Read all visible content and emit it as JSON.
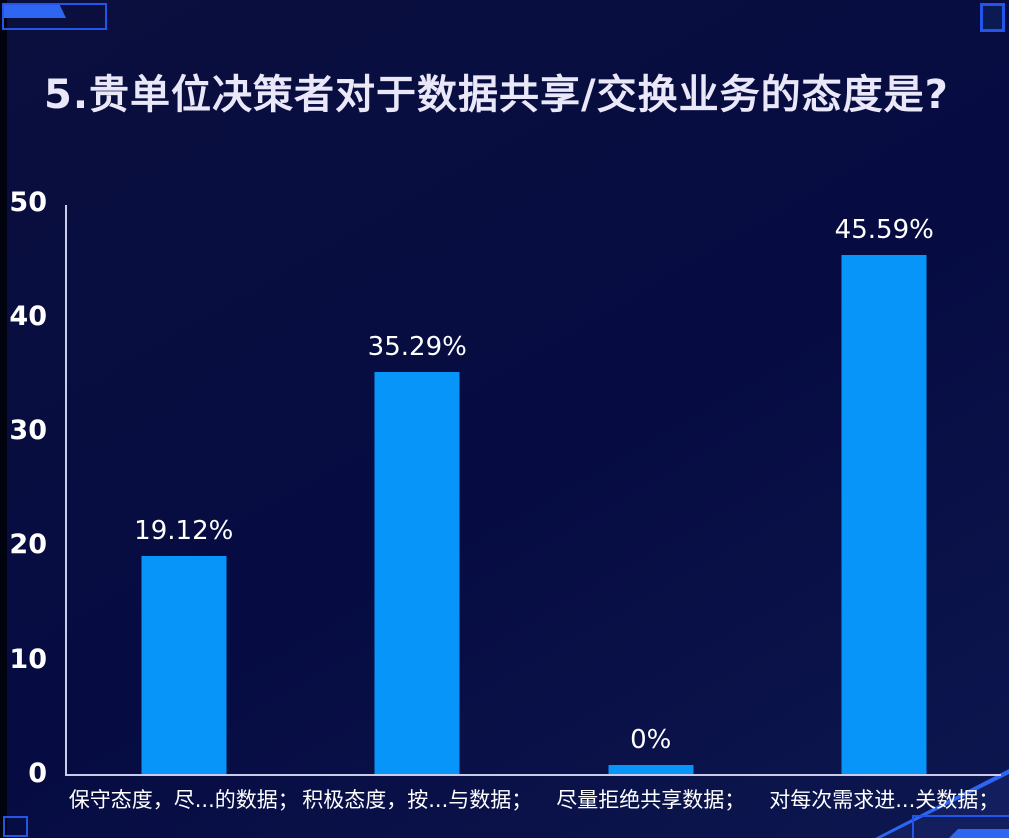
{
  "slide": {
    "background_color": "#070D3F",
    "accent_color": "#2356E8",
    "accent_bright_color": "#2E66F2",
    "axis_color": "#C9CCE8",
    "text_color": "#FFFFFF",
    "title_color": "#E9E7F8"
  },
  "chart_data": {
    "type": "bar",
    "title": "5.贵单位决策者对于数据共享/交换业务的态度是?",
    "categories": [
      "保守态度，尽...的数据；",
      "积极态度，按...与数据；",
      "尽量拒绝共享数据；",
      "对每次需求进...关数据；"
    ],
    "values": [
      19.12,
      35.29,
      0,
      45.59
    ],
    "value_labels": [
      "19.12%",
      "35.29%",
      "0%",
      "45.59%"
    ],
    "xlabel": "",
    "ylabel": "",
    "ylim": [
      0,
      50
    ],
    "yticks": [
      0,
      10,
      20,
      30,
      40,
      50
    ],
    "grid": false,
    "legend": "none",
    "bar_color": "#0895FA"
  }
}
